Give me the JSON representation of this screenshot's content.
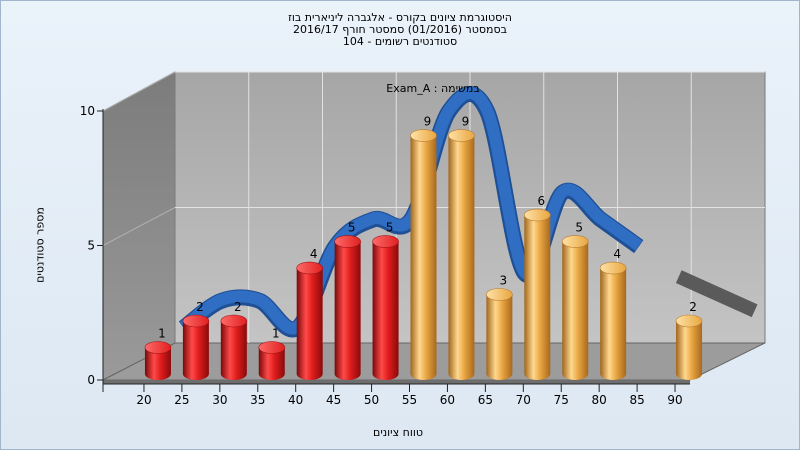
{
  "title": {
    "line1": "היסטוגרמת ציונים בקורס - אלגברה ליניארית בוז",
    "line2": "בסמסטר  (01/2016)  סמסטר חורף 2016/17",
    "line3": "סטודנטים רשומים - 104"
  },
  "chart_data": {
    "type": "bar",
    "xlabel": "טווח ציונים",
    "ylabel": "מספר סטודנטים",
    "series_label": "Exam_A : במשימה",
    "categories": [
      "20",
      "25",
      "30",
      "35",
      "40",
      "45",
      "50",
      "55",
      "60",
      "65",
      "70",
      "75",
      "80",
      "85",
      "90"
    ],
    "values": [
      1,
      2,
      2,
      1,
      4,
      5,
      5,
      9,
      9,
      3,
      6,
      5,
      4,
      null,
      2
    ],
    "bar_colors": [
      "red",
      "red",
      "red",
      "red",
      "red",
      "red",
      "red",
      "orange",
      "orange",
      "orange",
      "orange",
      "orange",
      "orange",
      "orange",
      "orange"
    ],
    "yticks": [
      0,
      5,
      10
    ],
    "ylim": [
      0,
      10
    ],
    "grid": true,
    "colors": {
      "red": "#d81818",
      "orange": "#e8a640",
      "curve": "#2f6ec2",
      "curve_shadow": "#5a5a5a",
      "wall": "#b7b7b7",
      "left_wall": "#8a8a8a",
      "floor": "#9c9c9c"
    }
  }
}
